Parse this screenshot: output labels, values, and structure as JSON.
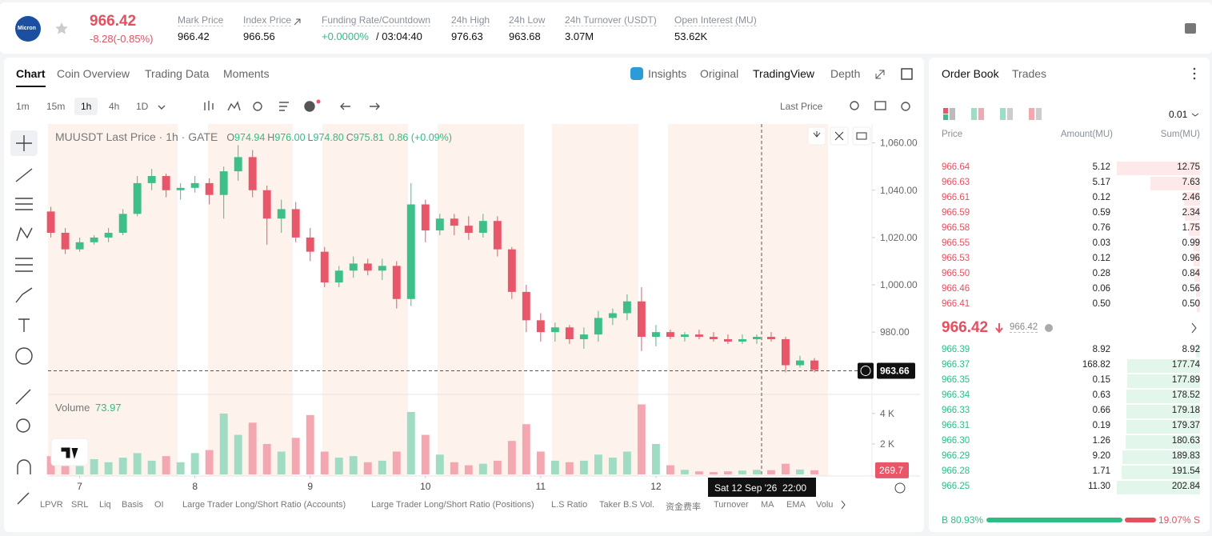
{
  "header": {
    "logo": "Micron",
    "price": "966.42",
    "change": "-8.28(-0.85%)",
    "stats": [
      {
        "label": "Mark Price",
        "value": "966.42"
      },
      {
        "label": "Index Price",
        "value": "966.56"
      },
      {
        "label": "Funding Rate/Countdown",
        "value": "+0.0000%",
        "countdown": "/ 03:04:40"
      },
      {
        "label": "24h High",
        "value": "976.63"
      },
      {
        "label": "24h Low",
        "value": "963.68"
      },
      {
        "label": "24h Turnover (USDT)",
        "value": "3.07M"
      },
      {
        "label": "Open Interest (MU)",
        "value": "53.62K"
      }
    ]
  },
  "tabs": [
    "Chart",
    "Coin Overview",
    "Trading Data",
    "Moments"
  ],
  "view_options": [
    "Insights",
    "Original",
    "TradingView",
    "Depth"
  ],
  "intervals": [
    "1m",
    "15m",
    "1h",
    "4h",
    "1D"
  ],
  "price_type": "Last Price",
  "indicators": [
    "LPVR",
    "SRL",
    "Liq",
    "Basis",
    "OI",
    "Large Trader Long/Short Ratio (Accounts)",
    "Large Trader Long/Short Ratio (Positions)",
    "L.S Ratio",
    "Taker B.S Vol.",
    "资金费率",
    "Turnover",
    "MA",
    "EMA",
    "Volu"
  ],
  "chart_data": {
    "type": "candlestick",
    "title": "MUUSDT Last Price · 1h · GATE",
    "ohlc_legend": [
      {
        "key": "O",
        "value": "974.94"
      },
      {
        "key": "H",
        "value": "976.00"
      },
      {
        "key": "L",
        "value": "974.80"
      },
      {
        "key": "C",
        "value": "975.81"
      }
    ],
    "change": "0.86 (+0.09%)",
    "up_color": "#3dbf8a",
    "down_color": "#e8566a",
    "open": [
      1031,
      1022,
      1015,
      1018,
      1020,
      1022,
      1030,
      1043,
      1046,
      1040,
      1041,
      1043,
      1038,
      1048,
      1054,
      1040,
      1028,
      1032,
      1020,
      1014,
      1001,
      1006,
      1009,
      1006,
      1008,
      994,
      1034,
      1023,
      1028,
      1025,
      1022,
      1027,
      1015,
      997,
      985,
      980,
      982,
      977,
      979,
      986,
      988,
      993,
      978,
      980,
      978,
      979,
      978,
      977,
      976,
      977,
      978,
      977,
      966,
      968
    ],
    "high": [
      1033,
      1024,
      1020,
      1021,
      1024,
      1032,
      1046,
      1049,
      1047,
      1043,
      1046,
      1045,
      1050,
      1059,
      1057,
      1042,
      1036,
      1035,
      1024,
      1016,
      1008,
      1012,
      1011,
      1011,
      1010,
      1043,
      1036,
      1030,
      1030,
      1029,
      1030,
      1029,
      1016,
      1000,
      988,
      984,
      983,
      982,
      989,
      990,
      996,
      999,
      983,
      981,
      980,
      981,
      980,
      979,
      979,
      979,
      980,
      978,
      970,
      969
    ],
    "low": [
      1020,
      1013,
      1014,
      1017,
      1018,
      1021,
      1029,
      1040,
      1037,
      1036,
      1039,
      1034,
      1028,
      1044,
      1037,
      1017,
      1022,
      1018,
      1010,
      999,
      999,
      1003,
      1004,
      1002,
      990,
      991,
      1018,
      1021,
      1021,
      1019,
      1020,
      1012,
      994,
      980,
      976,
      976,
      975,
      973,
      976,
      983,
      985,
      972,
      974,
      977,
      976,
      977,
      976,
      975,
      975,
      975,
      976,
      963,
      965,
      963
    ],
    "close": [
      1022,
      1015,
      1018,
      1020,
      1022,
      1030,
      1043,
      1046,
      1040,
      1041,
      1043,
      1038,
      1048,
      1054,
      1040,
      1028,
      1032,
      1020,
      1014,
      1001,
      1006,
      1009,
      1006,
      1008,
      994,
      1034,
      1023,
      1028,
      1025,
      1022,
      1027,
      1015,
      997,
      985,
      980,
      982,
      977,
      979,
      986,
      988,
      993,
      978,
      980,
      978,
      979,
      978,
      977,
      976,
      977,
      978,
      977,
      966,
      968,
      964
    ],
    "xlim": [
      -0.2,
      57
    ],
    "xticks": [
      {
        "value": 2,
        "label": "7"
      },
      {
        "value": 10,
        "label": "8"
      },
      {
        "value": 18,
        "label": "9"
      },
      {
        "value": 26,
        "label": "10"
      },
      {
        "value": 34,
        "label": "11"
      },
      {
        "value": 42,
        "label": "12"
      }
    ],
    "ylim": [
      954,
      1068
    ],
    "yticks": [
      {
        "value": 1060,
        "label": "1,060.00"
      },
      {
        "value": 1040,
        "label": "1,040.00"
      },
      {
        "value": 1020,
        "label": "1,020.00"
      },
      {
        "value": 1000,
        "label": "1,000.00"
      },
      {
        "value": 980,
        "label": "980.00"
      }
    ],
    "last_price": 963.66,
    "crosshair_label": "Sat 12 Sep '26  22:00",
    "volume": {
      "title": "Volume",
      "legend_value": 73.97,
      "up_color": "#9fdcc3",
      "down_color": "#f3a8b1",
      "values": [
        1200,
        900,
        1500,
        1000,
        800,
        1100,
        1400,
        900,
        1200,
        800,
        1400,
        1600,
        4000,
        2600,
        3400,
        2000,
        1500,
        2400,
        3900,
        1500,
        1100,
        1200,
        800,
        900,
        1500,
        4100,
        2600,
        1300,
        800,
        600,
        700,
        900,
        2200,
        3300,
        1500,
        900,
        800,
        900,
        1300,
        1100,
        1500,
        4600,
        2000,
        600,
        300,
        200,
        150,
        200,
        250,
        300,
        280,
        700,
        320,
        270
      ],
      "ylim": [
        0,
        5150
      ],
      "yticks": [
        {
          "value": 4000,
          "label": "4 K"
        },
        {
          "value": 2000,
          "label": "2 K"
        }
      ],
      "last_value": 269.7
    }
  },
  "order_book": {
    "tabs": [
      "Order Book",
      "Trades"
    ],
    "precision": "0.01",
    "columns": [
      "Price",
      "Amount(MU)",
      "Sum(MU)"
    ],
    "asks": [
      [
        "966.64",
        "5.12",
        "12.75"
      ],
      [
        "966.63",
        "5.17",
        "7.63"
      ],
      [
        "966.61",
        "0.12",
        "2.46"
      ],
      [
        "966.59",
        "0.59",
        "2.34"
      ],
      [
        "966.58",
        "0.76",
        "1.75"
      ],
      [
        "966.55",
        "0.03",
        "0.99"
      ],
      [
        "966.53",
        "0.12",
        "0.96"
      ],
      [
        "966.50",
        "0.28",
        "0.84"
      ],
      [
        "966.46",
        "0.06",
        "0.56"
      ],
      [
        "966.41",
        "0.50",
        "0.50"
      ]
    ],
    "last_price": "966.42",
    "mark_price": "966.42",
    "bids": [
      [
        "966.39",
        "8.92",
        "8.92"
      ],
      [
        "966.37",
        "168.82",
        "177.74"
      ],
      [
        "966.35",
        "0.15",
        "177.89"
      ],
      [
        "966.34",
        "0.63",
        "178.52"
      ],
      [
        "966.33",
        "0.66",
        "179.18"
      ],
      [
        "966.31",
        "0.19",
        "179.37"
      ],
      [
        "966.30",
        "1.26",
        "180.63"
      ],
      [
        "966.29",
        "9.20",
        "189.83"
      ],
      [
        "966.28",
        "1.71",
        "191.54"
      ],
      [
        "966.25",
        "11.30",
        "202.84"
      ]
    ],
    "buy_ratio": {
      "value": 80.93,
      "label": "B 80.93%"
    },
    "sell_ratio": {
      "value": 19.07,
      "label": "19.07% S"
    }
  }
}
